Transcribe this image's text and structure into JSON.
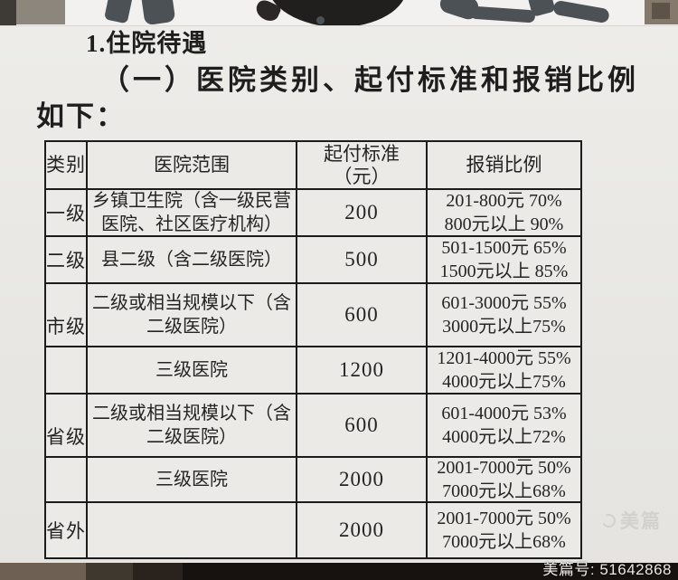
{
  "document": {
    "title_line1": "1.住院待遇",
    "heading_line1": "（一）医院类别、起付标准和报销比例",
    "heading_line2": "如下："
  },
  "table": {
    "headers": {
      "category": "类别",
      "scope": "医院范围",
      "deductible_line1": "起付标准",
      "deductible_line2": "（元）",
      "ratio": "报销比例"
    },
    "rows": [
      {
        "category": "一级",
        "scope_line1": "乡镇卫生院（含一级民营",
        "scope_line2": "医院、社区医疗机构）",
        "deductible": "200",
        "ratio_line1": "201-800元 70%",
        "ratio_line2": "800元以上 90%"
      },
      {
        "category": "二级",
        "scope_line1": "县二级（含二级医院）",
        "scope_line2": "",
        "deductible": "500",
        "ratio_line1": "501-1500元 65%",
        "ratio_line2": "1500元以上 85%"
      },
      {
        "category": "市级",
        "scope_line1": "二级或相当规模以下（含",
        "scope_line2": "二级医院）",
        "deductible": "600",
        "ratio_line1": "601-3000元 55%",
        "ratio_line2": "3000元以上75%"
      },
      {
        "category": "",
        "scope_line1": "三级医院",
        "scope_line2": "",
        "deductible": "1200",
        "ratio_line1": "1201-4000元 55%",
        "ratio_line2": "4000元以上75%"
      },
      {
        "category": "省级",
        "scope_line1": "二级或相当规模以下（含",
        "scope_line2": "二级医院）",
        "deductible": "600",
        "ratio_line1": "601-4000元 53%",
        "ratio_line2": "4000元以上72%"
      },
      {
        "category": "",
        "scope_line1": "三级医院",
        "scope_line2": "",
        "deductible": "2000",
        "ratio_line1": "2001-7000元 50%",
        "ratio_line2": "7000元以上68%"
      },
      {
        "category": "省外",
        "scope_line1": "",
        "scope_line2": "",
        "deductible": "2000",
        "ratio_line1": "2001-7000元 50%",
        "ratio_line2": "7000元以上68%"
      }
    ]
  },
  "watermark": {
    "brand": "美篇",
    "footer_id": "美篇号: 51642868"
  },
  "colors": {
    "paper": "#e9e8e4",
    "ink": "#242424",
    "table_border": "#1c1c1c",
    "footer_text": "#ece8e2",
    "watermark": "#d2d1cd"
  }
}
